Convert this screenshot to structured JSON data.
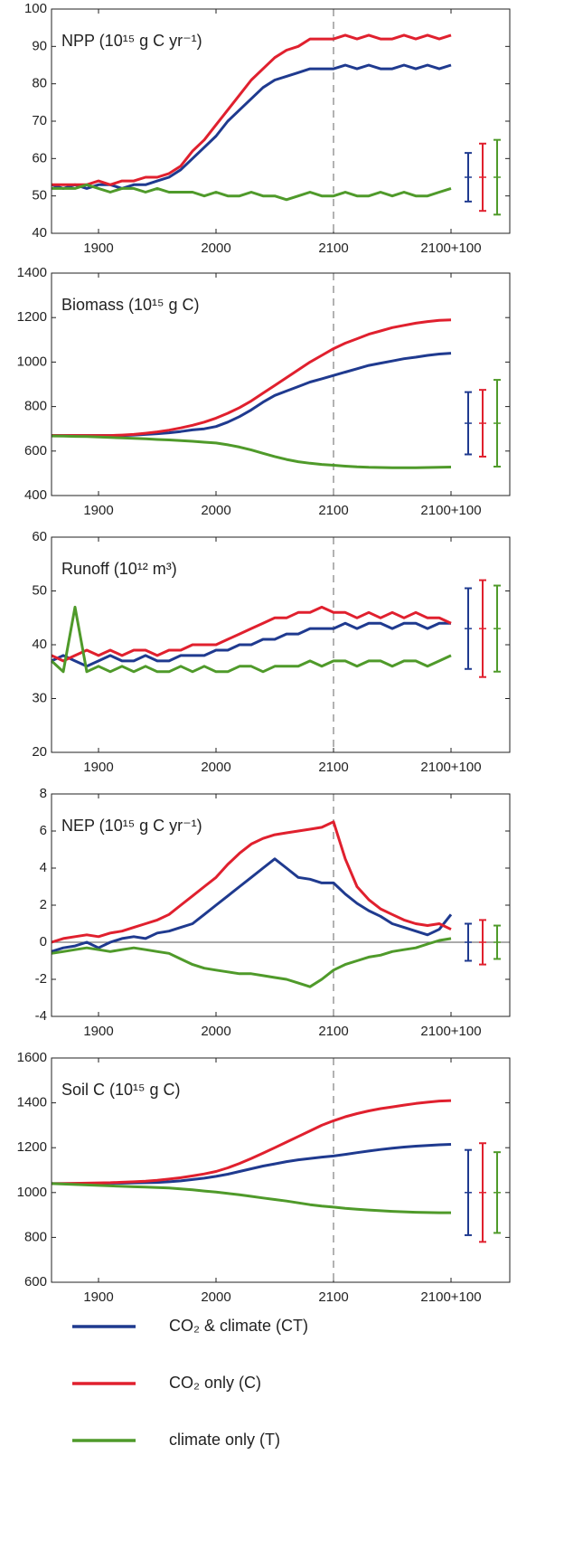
{
  "legend": [
    {
      "name": "CO₂ & climate (CT)",
      "color": "#1f3a8f"
    },
    {
      "name": "CO₂ only (C)",
      "color": "#e0202e"
    },
    {
      "name": "climate only (T)",
      "color": "#4f9a2a"
    }
  ],
  "chart_data": [
    {
      "type": "line",
      "title": "NPP (10¹⁵ g C yr⁻¹)",
      "x": [
        1860,
        1870,
        1880,
        1890,
        1900,
        1910,
        1920,
        1930,
        1940,
        1950,
        1960,
        1970,
        1980,
        1990,
        2000,
        2010,
        2020,
        2030,
        2040,
        2050,
        2060,
        2070,
        2080,
        2090,
        2100,
        2110,
        2120,
        2130,
        2140,
        2150,
        2160,
        2170,
        2180,
        2190,
        2200
      ],
      "xlim": [
        1860,
        2250
      ],
      "xticks": [
        1900,
        2000,
        2100,
        {
          "value": 2200,
          "label": "2100+100"
        }
      ],
      "ylim": [
        40,
        100
      ],
      "yticks": [
        40,
        50,
        60,
        70,
        80,
        90,
        100
      ],
      "reference_x": 2100,
      "series": [
        {
          "color": "#1f3a8f",
          "values": [
            53,
            52,
            53,
            52,
            53,
            53,
            52,
            53,
            53,
            54,
            55,
            57,
            60,
            63,
            66,
            70,
            73,
            76,
            79,
            81,
            82,
            83,
            84,
            84,
            84,
            85,
            84,
            85,
            84,
            84,
            85,
            84,
            85,
            84,
            85
          ],
          "error_center": 55,
          "error": 6.5
        },
        {
          "color": "#e0202e",
          "values": [
            53,
            53,
            53,
            53,
            54,
            53,
            54,
            54,
            55,
            55,
            56,
            58,
            62,
            65,
            69,
            73,
            77,
            81,
            84,
            87,
            89,
            90,
            92,
            92,
            92,
            93,
            92,
            93,
            92,
            92,
            93,
            92,
            93,
            92,
            93
          ],
          "error_center": 55,
          "error": 9
        },
        {
          "color": "#4f9a2a",
          "values": [
            52,
            52,
            52,
            53,
            52,
            51,
            52,
            52,
            51,
            52,
            51,
            51,
            51,
            50,
            51,
            50,
            50,
            51,
            50,
            50,
            49,
            50,
            51,
            50,
            50,
            51,
            50,
            50,
            51,
            50,
            51,
            50,
            50,
            51,
            52
          ],
          "error_center": 55,
          "error": 10
        }
      ]
    },
    {
      "type": "line",
      "title": "Biomass (10¹⁵ g C)",
      "x": [
        1860,
        1870,
        1880,
        1890,
        1900,
        1910,
        1920,
        1930,
        1940,
        1950,
        1960,
        1970,
        1980,
        1990,
        2000,
        2010,
        2020,
        2030,
        2040,
        2050,
        2060,
        2070,
        2080,
        2090,
        2100,
        2110,
        2120,
        2130,
        2140,
        2150,
        2160,
        2170,
        2180,
        2190,
        2200
      ],
      "xlim": [
        1860,
        2250
      ],
      "xticks": [
        1900,
        2000,
        2100,
        {
          "value": 2200,
          "label": "2100+100"
        }
      ],
      "ylim": [
        400,
        1400
      ],
      "yticks": [
        400,
        600,
        800,
        1000,
        1200,
        1400
      ],
      "reference_x": 2100,
      "series": [
        {
          "color": "#1f3a8f",
          "values": [
            670,
            670,
            670,
            670,
            670,
            670,
            670,
            672,
            675,
            678,
            682,
            688,
            695,
            700,
            710,
            730,
            755,
            785,
            820,
            850,
            870,
            890,
            910,
            925,
            940,
            955,
            970,
            985,
            995,
            1005,
            1015,
            1022,
            1030,
            1036,
            1040
          ],
          "error_center": 725,
          "error": 140
        },
        {
          "color": "#e0202e",
          "values": [
            670,
            670,
            670,
            670,
            670,
            670,
            672,
            675,
            680,
            686,
            694,
            704,
            716,
            730,
            748,
            770,
            795,
            825,
            860,
            895,
            930,
            965,
            1000,
            1030,
            1060,
            1085,
            1105,
            1125,
            1140,
            1155,
            1165,
            1175,
            1182,
            1188,
            1190
          ],
          "error_center": 725,
          "error": 150
        },
        {
          "color": "#4f9a2a",
          "values": [
            668,
            667,
            666,
            665,
            663,
            661,
            659,
            657,
            655,
            652,
            650,
            647,
            644,
            640,
            636,
            628,
            618,
            605,
            590,
            575,
            562,
            552,
            545,
            540,
            536,
            532,
            529,
            527,
            526,
            525,
            525,
            525,
            526,
            527,
            528
          ],
          "error_center": 725,
          "error": 195
        }
      ]
    },
    {
      "type": "line",
      "title": "Runoff (10¹² m³)",
      "x": [
        1860,
        1870,
        1880,
        1890,
        1900,
        1910,
        1920,
        1930,
        1940,
        1950,
        1960,
        1970,
        1980,
        1990,
        2000,
        2010,
        2020,
        2030,
        2040,
        2050,
        2060,
        2070,
        2080,
        2090,
        2100,
        2110,
        2120,
        2130,
        2140,
        2150,
        2160,
        2170,
        2180,
        2190,
        2200
      ],
      "xlim": [
        1860,
        2250
      ],
      "xticks": [
        1900,
        2000,
        2100,
        {
          "value": 2200,
          "label": "2100+100"
        }
      ],
      "ylim": [
        20,
        60
      ],
      "yticks": [
        20,
        30,
        40,
        50,
        60
      ],
      "reference_x": 2100,
      "series": [
        {
          "color": "#1f3a8f",
          "values": [
            37,
            38,
            37,
            36,
            37,
            38,
            37,
            37,
            38,
            37,
            37,
            38,
            38,
            38,
            39,
            39,
            40,
            40,
            41,
            41,
            42,
            42,
            43,
            43,
            43,
            44,
            43,
            44,
            44,
            43,
            44,
            44,
            43,
            44,
            44
          ],
          "error_center": 43,
          "error": 7.5
        },
        {
          "color": "#e0202e",
          "values": [
            38,
            37,
            38,
            39,
            38,
            39,
            38,
            39,
            39,
            38,
            39,
            39,
            40,
            40,
            40,
            41,
            42,
            43,
            44,
            45,
            45,
            46,
            46,
            47,
            46,
            46,
            45,
            46,
            45,
            46,
            45,
            46,
            45,
            45,
            44
          ],
          "error_center": 43,
          "error": 9
        },
        {
          "color": "#4f9a2a",
          "values": [
            37,
            35,
            47,
            35,
            36,
            35,
            36,
            35,
            36,
            35,
            35,
            36,
            35,
            36,
            35,
            35,
            36,
            36,
            35,
            36,
            36,
            36,
            37,
            36,
            37,
            37,
            36,
            37,
            37,
            36,
            37,
            37,
            36,
            37,
            38
          ],
          "error_center": 43,
          "error": 8
        }
      ]
    },
    {
      "type": "line",
      "title": "NEP (10¹⁵ g C yr⁻¹)",
      "x": [
        1860,
        1870,
        1880,
        1890,
        1900,
        1910,
        1920,
        1930,
        1940,
        1950,
        1960,
        1970,
        1980,
        1990,
        2000,
        2010,
        2020,
        2030,
        2040,
        2050,
        2060,
        2070,
        2080,
        2090,
        2100,
        2110,
        2120,
        2130,
        2140,
        2150,
        2160,
        2170,
        2180,
        2190,
        2200
      ],
      "xlim": [
        1860,
        2250
      ],
      "xticks": [
        1900,
        2000,
        2100,
        {
          "value": 2200,
          "label": "2100+100"
        }
      ],
      "ylim": [
        -4,
        8
      ],
      "yticks": [
        -4,
        -2,
        0,
        2,
        4,
        6,
        8
      ],
      "reference_x": 2100,
      "reference_y": 0,
      "series": [
        {
          "color": "#1f3a8f",
          "values": [
            -0.5,
            -0.3,
            -0.2,
            0,
            -0.3,
            0,
            0.2,
            0.3,
            0.2,
            0.5,
            0.6,
            0.8,
            1.0,
            1.5,
            2.0,
            2.5,
            3.0,
            3.5,
            4.0,
            4.5,
            4.0,
            3.5,
            3.4,
            3.2,
            3.2,
            2.6,
            2.1,
            1.7,
            1.4,
            1.0,
            0.8,
            0.6,
            0.4,
            0.7,
            1.5
          ],
          "error_center": 0,
          "error": 1
        },
        {
          "color": "#e0202e",
          "values": [
            0,
            0.2,
            0.3,
            0.4,
            0.3,
            0.5,
            0.6,
            0.8,
            1.0,
            1.2,
            1.5,
            2.0,
            2.5,
            3.0,
            3.5,
            4.2,
            4.8,
            5.3,
            5.6,
            5.8,
            5.9,
            6.0,
            6.1,
            6.2,
            6.5,
            4.5,
            3.0,
            2.3,
            1.8,
            1.5,
            1.2,
            1.0,
            0.9,
            1.0,
            0.7
          ],
          "error_center": 0,
          "error": 1.2
        },
        {
          "color": "#4f9a2a",
          "values": [
            -0.6,
            -0.5,
            -0.4,
            -0.3,
            -0.4,
            -0.5,
            -0.4,
            -0.3,
            -0.4,
            -0.5,
            -0.6,
            -0.9,
            -1.2,
            -1.4,
            -1.5,
            -1.6,
            -1.7,
            -1.7,
            -1.8,
            -1.9,
            -2.0,
            -2.2,
            -2.4,
            -2.0,
            -1.5,
            -1.2,
            -1.0,
            -0.8,
            -0.7,
            -0.5,
            -0.4,
            -0.3,
            -0.1,
            0.1,
            0.2
          ],
          "error_center": 0,
          "error": 0.9
        }
      ]
    },
    {
      "type": "line",
      "title": "Soil C  (10¹⁵ g C)",
      "x": [
        1860,
        1870,
        1880,
        1890,
        1900,
        1910,
        1920,
        1930,
        1940,
        1950,
        1960,
        1970,
        1980,
        1990,
        2000,
        2010,
        2020,
        2030,
        2040,
        2050,
        2060,
        2070,
        2080,
        2090,
        2100,
        2110,
        2120,
        2130,
        2140,
        2150,
        2160,
        2170,
        2180,
        2190,
        2200
      ],
      "xlim": [
        1860,
        2250
      ],
      "xticks": [
        1900,
        2000,
        2100,
        {
          "value": 2200,
          "label": "2100+100"
        }
      ],
      "ylim": [
        600,
        1600
      ],
      "yticks": [
        600,
        800,
        1000,
        1200,
        1400,
        1600
      ],
      "reference_x": 2100,
      "series": [
        {
          "color": "#1f3a8f",
          "values": [
            1040,
            1040,
            1040,
            1041,
            1041,
            1042,
            1042,
            1043,
            1044,
            1045,
            1048,
            1052,
            1058,
            1064,
            1072,
            1082,
            1094,
            1106,
            1118,
            1128,
            1138,
            1146,
            1152,
            1158,
            1163,
            1170,
            1178,
            1185,
            1192,
            1198,
            1203,
            1207,
            1210,
            1213,
            1215
          ],
          "error_center": 1000,
          "error": 190
        },
        {
          "color": "#e0202e",
          "values": [
            1040,
            1040,
            1041,
            1042,
            1043,
            1044,
            1046,
            1048,
            1051,
            1055,
            1060,
            1066,
            1074,
            1083,
            1094,
            1110,
            1130,
            1152,
            1176,
            1200,
            1225,
            1250,
            1275,
            1300,
            1320,
            1338,
            1352,
            1364,
            1374,
            1382,
            1390,
            1397,
            1403,
            1408,
            1410
          ],
          "error_center": 1000,
          "error": 220
        },
        {
          "color": "#4f9a2a",
          "values": [
            1040,
            1038,
            1036,
            1034,
            1032,
            1030,
            1028,
            1026,
            1024,
            1022,
            1020,
            1016,
            1012,
            1007,
            1002,
            996,
            990,
            983,
            976,
            969,
            962,
            954,
            946,
            940,
            935,
            930,
            926,
            922,
            919,
            916,
            914,
            912,
            911,
            910,
            910
          ],
          "error_center": 1000,
          "error": 180
        }
      ]
    }
  ]
}
